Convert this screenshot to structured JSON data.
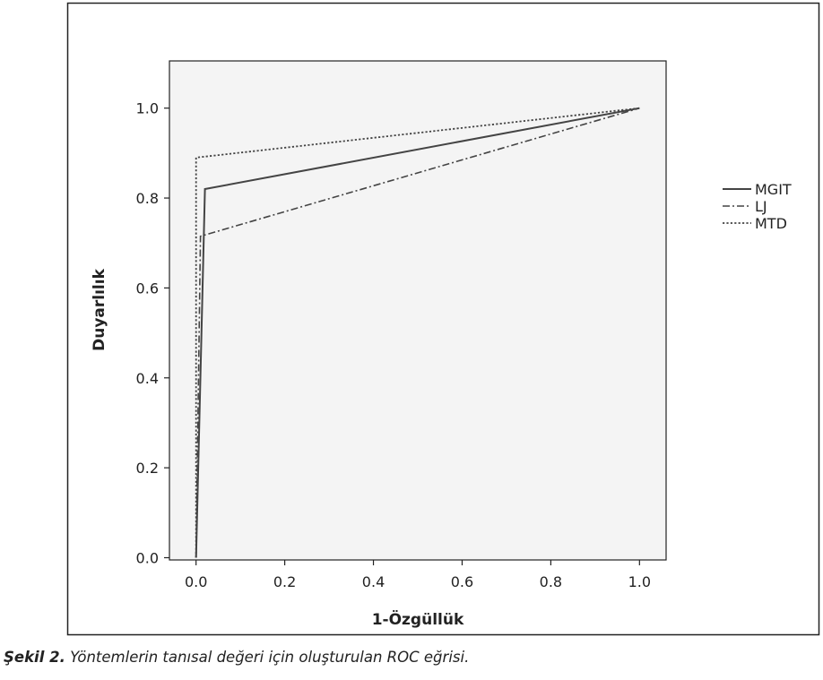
{
  "caption": {
    "label": "Şekil 2.",
    "text": " Yöntemlerin tanısal değeri için oluşturulan ROC eğrisi."
  },
  "colors": {
    "plot_background": "#f4f4f4",
    "line": "#444444",
    "frame": "#222222"
  },
  "chart_data": {
    "type": "line",
    "title": "",
    "xlabel": "1-Özgüllük",
    "ylabel": "Duyarlılık",
    "xlim": [
      -0.06,
      1.06
    ],
    "ylim": [
      -0.005,
      1.105
    ],
    "xticks": [
      "0.0",
      "0.2",
      "0.4",
      "0.6",
      "0.8",
      "1.0"
    ],
    "yticks": [
      "0.0",
      "0.2",
      "0.4",
      "0.6",
      "0.8",
      "1.0"
    ],
    "grid": false,
    "legend": "right",
    "series": [
      {
        "name": "MGIT",
        "style": "solid",
        "x": [
          0.0,
          0.02,
          1.0
        ],
        "y": [
          0.0,
          0.82,
          1.0
        ]
      },
      {
        "name": "LJ",
        "style": "dashdot",
        "x": [
          0.0,
          0.01,
          1.0
        ],
        "y": [
          0.0,
          0.715,
          1.0
        ]
      },
      {
        "name": "MTD",
        "style": "dotted",
        "x": [
          0.0,
          0.0,
          1.0
        ],
        "y": [
          0.0,
          0.89,
          1.0
        ]
      }
    ]
  }
}
